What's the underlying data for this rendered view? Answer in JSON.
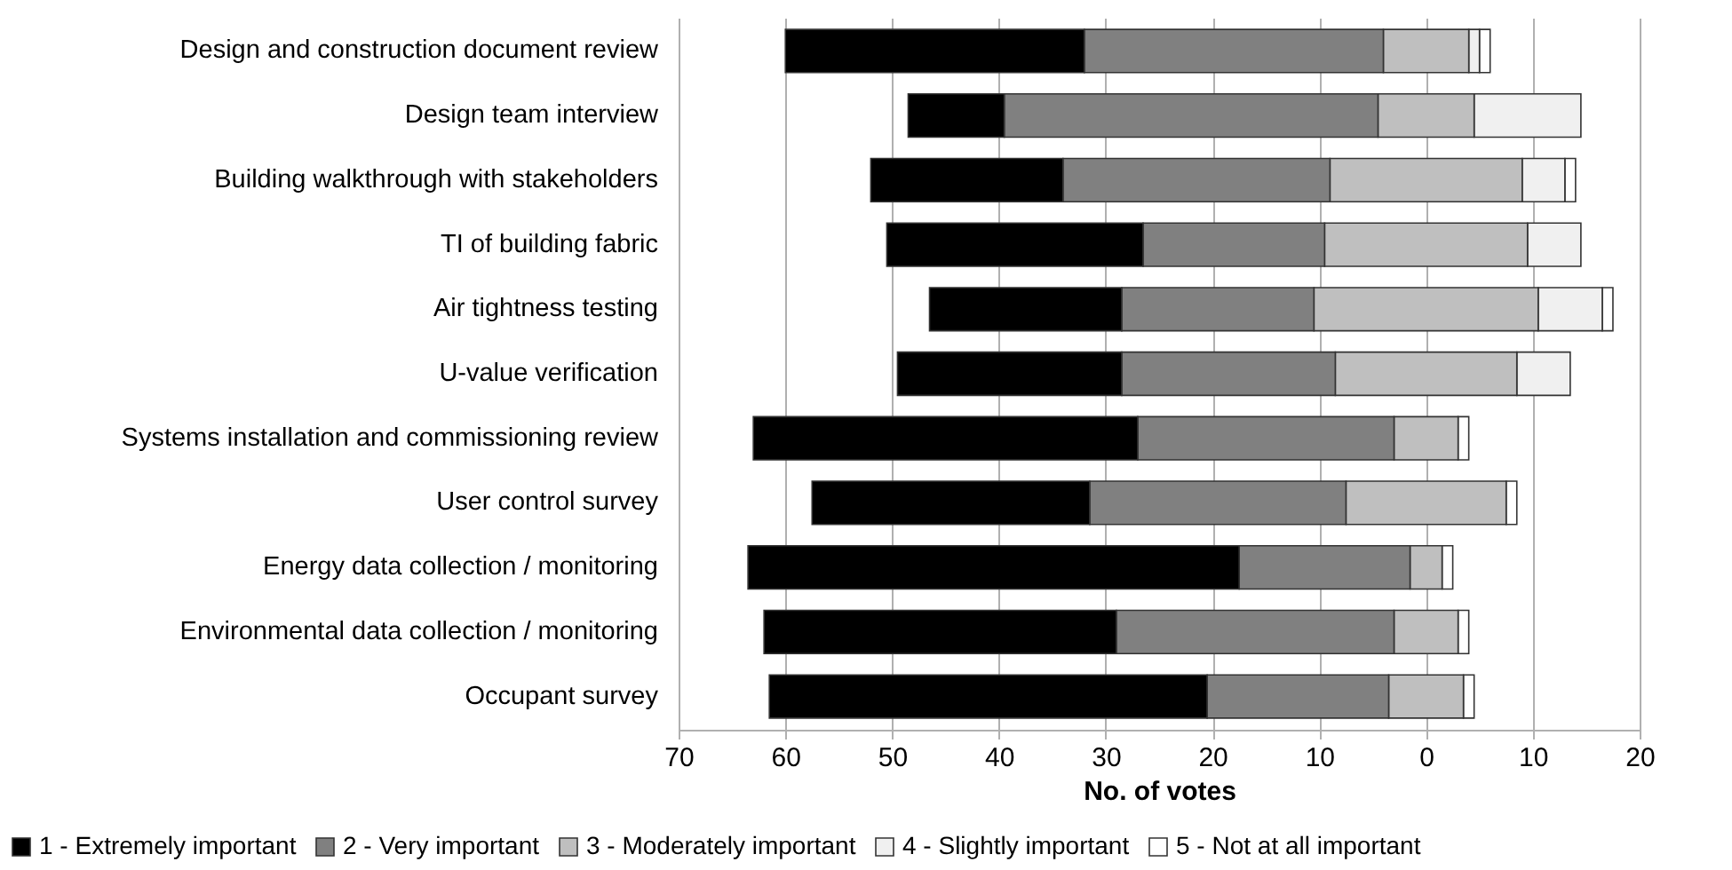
{
  "chart_data": {
    "type": "bar",
    "orientation": "horizontal",
    "xlabel": "No. of votes",
    "categories": [
      "Design and construction document review",
      "Design team interview",
      "Building walkthrough with stakeholders",
      "TI of building fabric",
      "Air tightness testing",
      "U-value verification",
      "Systems installation and commissioning review",
      "User control survey",
      "Energy data collection / monitoring",
      "Environmental data collection / monitoring",
      "Occupant survey"
    ],
    "series": [
      {
        "name": "5 - Not at all important",
        "color": "#ffffff",
        "base": [
          -6,
          null,
          -14,
          null,
          -17.5,
          null,
          -4,
          -8.5,
          -2.5,
          -4,
          -4.5
        ],
        "values": [
          1,
          null,
          1,
          null,
          1,
          null,
          1,
          1,
          1,
          1,
          1
        ]
      },
      {
        "name": "4 - Slightly important",
        "color": "#f0f0f0",
        "base": [
          -5,
          -14.5,
          -13,
          -14.5,
          -16.5,
          -13.5,
          null,
          null,
          null,
          null,
          null
        ],
        "values": [
          1,
          10,
          4,
          5,
          6,
          5,
          null,
          null,
          null,
          null,
          null
        ]
      },
      {
        "name": "3 - Moderately important",
        "color": "#bfbfbf",
        "base": [
          -4,
          -4.5,
          -9,
          -9.5,
          -10.5,
          -8.5,
          -3,
          -7.5,
          -1.5,
          -3,
          -3.5
        ],
        "values": [
          8,
          9,
          18,
          19,
          21,
          17,
          6,
          15,
          3,
          6,
          7
        ]
      },
      {
        "name": "2 - Very important",
        "color": "#808080",
        "base": [
          4,
          4.5,
          9,
          9.5,
          10.5,
          8.5,
          3,
          7.5,
          1.5,
          3,
          3.5
        ],
        "values": [
          28,
          35,
          25,
          17,
          18,
          20,
          24,
          24,
          16,
          26,
          17
        ]
      },
      {
        "name": "1 - Extremely important",
        "color": "#000000",
        "base": [
          32,
          39.5,
          34,
          26.5,
          28.5,
          28.5,
          27,
          31.5,
          17.5,
          29,
          20.5
        ],
        "values": [
          28,
          9,
          18,
          24,
          18,
          21,
          36,
          26,
          46,
          33,
          41
        ]
      }
    ],
    "xlim": [
      70,
      -20
    ],
    "xticks": [
      70,
      60,
      50,
      40,
      30,
      20,
      10,
      0,
      {
        "value": -10,
        "label": "10"
      },
      {
        "value": -20,
        "label": "20"
      }
    ],
    "grid": "x",
    "legend": "bottom"
  }
}
